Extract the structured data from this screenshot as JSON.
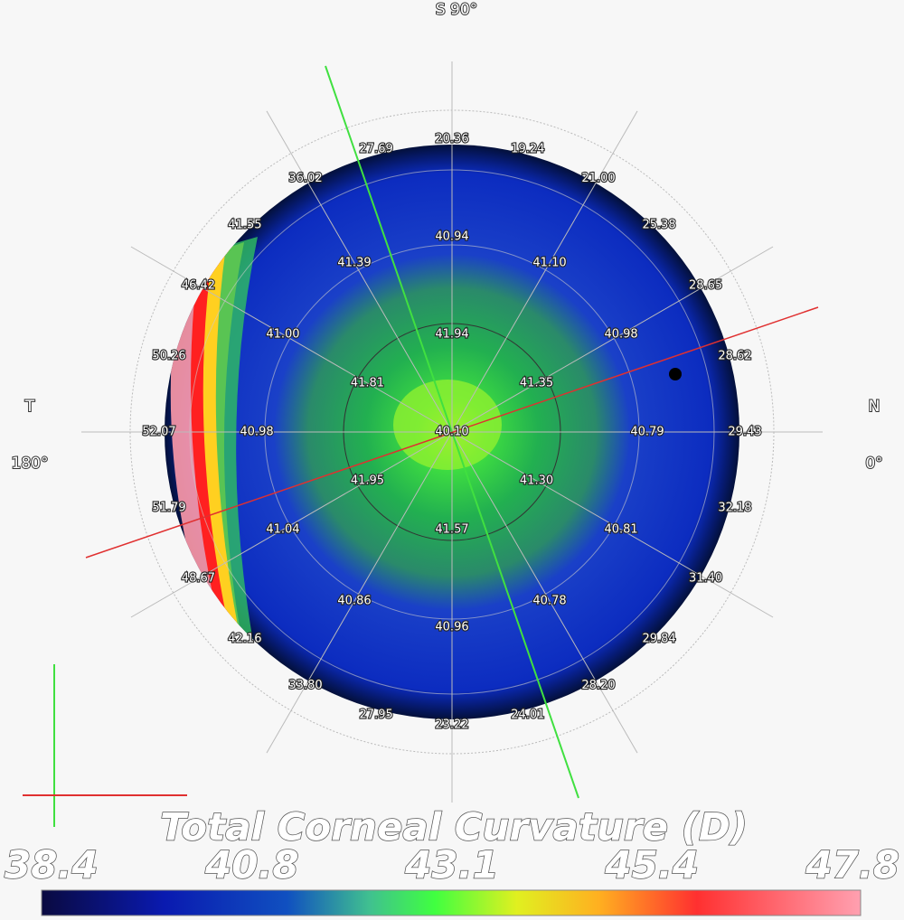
{
  "orientation": {
    "top": "S  90°",
    "left": "T",
    "left_angle": "180°",
    "right": "N",
    "right_angle": "0°"
  },
  "readings": {
    "outer": [
      "20.36",
      "19.24",
      "21.00",
      "25.38",
      "28.65",
      "28.62",
      "29.43",
      "32.18",
      "31.40",
      "29.84",
      "28.20",
      "24.01",
      "23.22",
      "27.95",
      "33.80",
      "42.16",
      "48.67",
      "51.79",
      "52.07",
      "50.26",
      "46.42",
      "41.55",
      "36.02",
      "27.69"
    ],
    "middle": [
      "40.94",
      "41.10",
      "40.98",
      "40.79",
      "40.81",
      "40.78",
      "40.96",
      "40.86",
      "41.04",
      "40.98",
      "41.00",
      "41.39"
    ],
    "inner": [
      "41.94",
      "41.35",
      "41.30",
      "41.57",
      "41.95",
      "41.81"
    ],
    "center": "40.10"
  },
  "title": "Total Corneal Curvature  (D)",
  "colorbar": {
    "ticks": [
      38.4,
      40.8,
      43.1,
      45.4,
      47.8
    ]
  }
}
